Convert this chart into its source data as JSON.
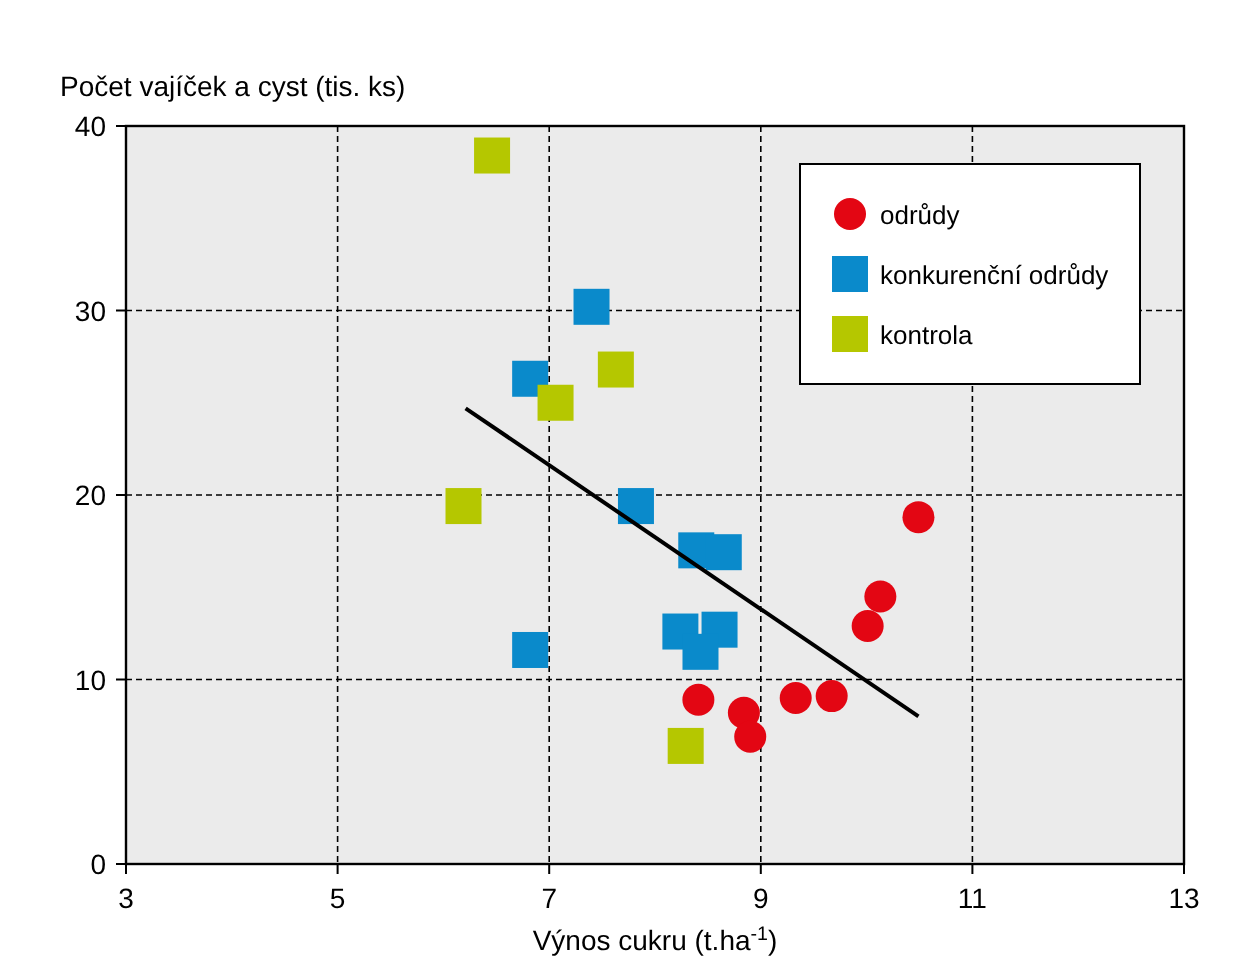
{
  "chart_data": {
    "type": "scatter",
    "xlabel": "Výnos cukru (t.ha$^{-1}$)",
    "ylabel": "Počet vajíček a cyst  (tis. ks)",
    "xlim": [
      3,
      13
    ],
    "ylim": [
      0,
      40
    ],
    "xticks": [
      3,
      5,
      7,
      9,
      11,
      13
    ],
    "yticks": [
      0,
      10,
      20,
      30,
      40
    ],
    "grid": true,
    "legend": "top right",
    "series": [
      {
        "name": "odrůdy",
        "color": "#e30613",
        "marker": "circle",
        "x": [
          8.41,
          8.84,
          8.9,
          9.33,
          9.67,
          10.01,
          10.13,
          10.49
        ],
        "values": [
          8.9,
          8.2,
          6.9,
          9.0,
          9.1,
          12.9,
          14.5,
          18.8
        ]
      },
      {
        "name": "konkurenční odrůdy",
        "color": "#0a8acb",
        "marker": "square",
        "x": [
          7.4,
          6.82,
          7.82,
          8.39,
          8.65,
          8.24,
          8.61,
          8.43,
          6.82
        ],
        "values": [
          30.2,
          26.3,
          19.4,
          17.0,
          16.9,
          12.6,
          12.7,
          11.5,
          11.6
        ]
      },
      {
        "name": "kontrola",
        "color": "#b5c700",
        "marker": "square",
        "x": [
          6.46,
          6.19,
          7.06,
          7.63,
          8.29
        ],
        "values": [
          38.4,
          19.4,
          25.0,
          26.8,
          6.4
        ]
      },
      {
        "type": "line",
        "color": "#000000",
        "x": [
          6.21,
          10.49
        ],
        "values": [
          24.7,
          8.0
        ]
      }
    ]
  }
}
